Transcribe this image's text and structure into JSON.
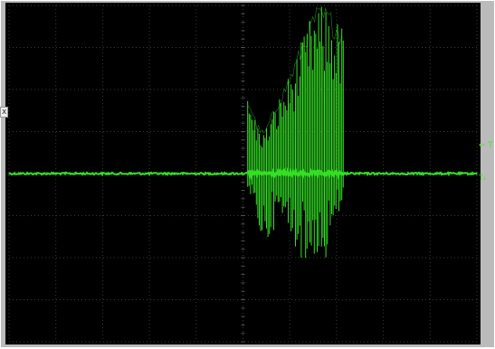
{
  "labels": {
    "left_marker": "x",
    "trigger": "← T",
    "channel": "T₂"
  },
  "colors": {
    "background": "#000000",
    "frame": "#bbbbbb",
    "grid": "#3a3a3a",
    "trace": "#33e022"
  },
  "chart_data": {
    "type": "line",
    "title": "",
    "xlabel": "",
    "ylabel": "",
    "grid": true,
    "xdivisions": 10,
    "ydivisions": 8,
    "xlim": [
      0,
      10
    ],
    "ylim": [
      -4,
      4
    ],
    "baseline": 0,
    "burst": {
      "start_div": 5.1,
      "end_div": 7.15,
      "envelope_max": [
        [
          5.1,
          1.8
        ],
        [
          5.18,
          1.65
        ],
        [
          5.3,
          1.2
        ],
        [
          5.45,
          1.0
        ],
        [
          5.6,
          1.4
        ],
        [
          5.8,
          1.9
        ],
        [
          6.0,
          2.4
        ],
        [
          6.2,
          3.0
        ],
        [
          6.4,
          3.6
        ],
        [
          6.55,
          4.0
        ],
        [
          6.8,
          4.0
        ],
        [
          7.0,
          3.7
        ],
        [
          7.15,
          3.5
        ]
      ],
      "envelope_min": [
        [
          5.1,
          -0.6
        ],
        [
          5.3,
          -1.1
        ],
        [
          5.45,
          -2.0
        ],
        [
          5.6,
          -1.4
        ],
        [
          5.8,
          -1.2
        ],
        [
          6.0,
          -1.5
        ],
        [
          6.2,
          -1.9
        ],
        [
          6.35,
          -2.4
        ],
        [
          6.55,
          -1.9
        ],
        [
          6.7,
          -2.4
        ],
        [
          6.95,
          -1.4
        ],
        [
          7.15,
          -0.6
        ]
      ]
    }
  }
}
